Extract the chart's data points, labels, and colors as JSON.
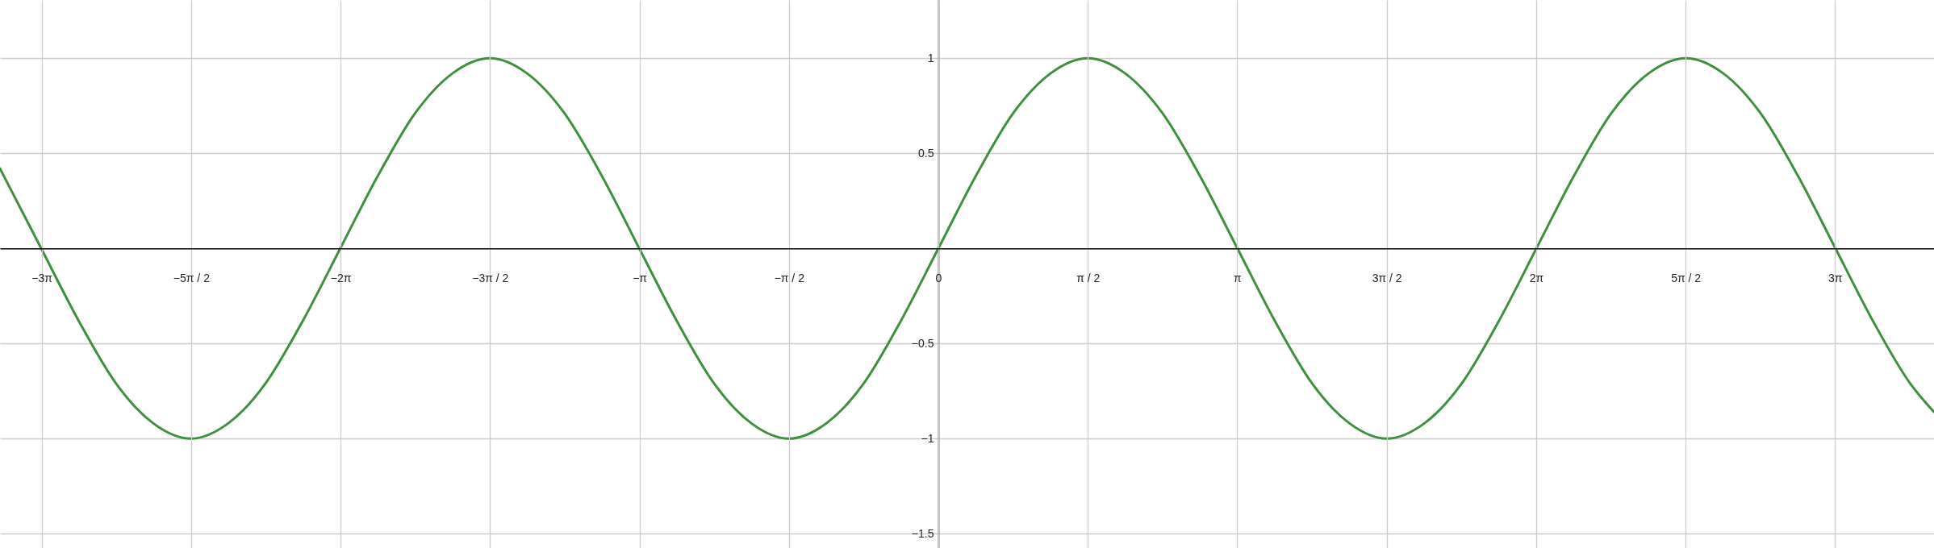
{
  "chart_data": {
    "type": "line",
    "x": [
      -9.858,
      -9.817,
      -9.425,
      -9.032,
      -8.639,
      -8.247,
      -7.854,
      -7.461,
      -7.069,
      -6.676,
      -6.283,
      -5.89,
      -5.498,
      -5.105,
      -4.712,
      -4.32,
      -3.927,
      -3.534,
      -3.142,
      -2.749,
      -2.356,
      -1.963,
      -1.571,
      -1.178,
      -0.785,
      -0.393,
      0,
      0.393,
      0.785,
      1.178,
      1.571,
      1.963,
      2.356,
      2.749,
      3.142,
      3.534,
      3.927,
      4.32,
      4.712,
      5.105,
      5.498,
      5.89,
      6.283,
      6.676,
      7.069,
      7.461,
      7.854,
      8.247,
      8.639,
      9.032,
      9.425,
      9.817,
      10.21,
      10.46
    ],
    "series": [
      {
        "color": "#3f8f3f",
        "values": [
          0.42,
          0.38,
          0,
          -0.38,
          -0.71,
          -0.92,
          -1,
          -0.92,
          -0.71,
          -0.38,
          0,
          0.38,
          0.71,
          0.92,
          1,
          0.92,
          0.71,
          0.38,
          0,
          -0.38,
          -0.71,
          -0.92,
          -1,
          -0.92,
          -0.71,
          -0.38,
          0,
          0.38,
          0.71,
          0.92,
          1,
          0.92,
          0.71,
          0.38,
          0,
          -0.38,
          -0.71,
          -0.92,
          -1,
          -0.92,
          -0.71,
          -0.38,
          0,
          0.38,
          0.71,
          0.92,
          1,
          0.92,
          0.71,
          0.38,
          0,
          -0.38,
          -0.71,
          -0.86
        ]
      }
    ],
    "xlim": [
      -9.858,
      10.46
    ],
    "ylim": [
      -1.575,
      1.306
    ],
    "xticks": [
      {
        "value": -9.42,
        "label": "−3π"
      },
      {
        "value": -7.85,
        "label": "−5π / 2"
      },
      {
        "value": -6.28,
        "label": "−2π"
      },
      {
        "value": -4.71,
        "label": "−3π / 2"
      },
      {
        "value": -3.14,
        "label": "−π"
      },
      {
        "value": -1.57,
        "label": "−π / 2"
      },
      {
        "value": 0,
        "label": "0"
      },
      {
        "value": 1.57,
        "label": "π / 2"
      },
      {
        "value": 3.14,
        "label": "π"
      },
      {
        "value": 4.71,
        "label": "3π / 2"
      },
      {
        "value": 6.28,
        "label": "2π"
      },
      {
        "value": 7.85,
        "label": "5π / 2"
      },
      {
        "value": 9.42,
        "label": "3π"
      }
    ],
    "yticks": [
      {
        "value": -1.5,
        "label": "−1.5"
      },
      {
        "value": -1,
        "label": "−1"
      },
      {
        "value": -0.5,
        "label": "−0.5"
      },
      0.5,
      1
    ],
    "grid": true,
    "marker": "none",
    "line_style": "solid"
  }
}
